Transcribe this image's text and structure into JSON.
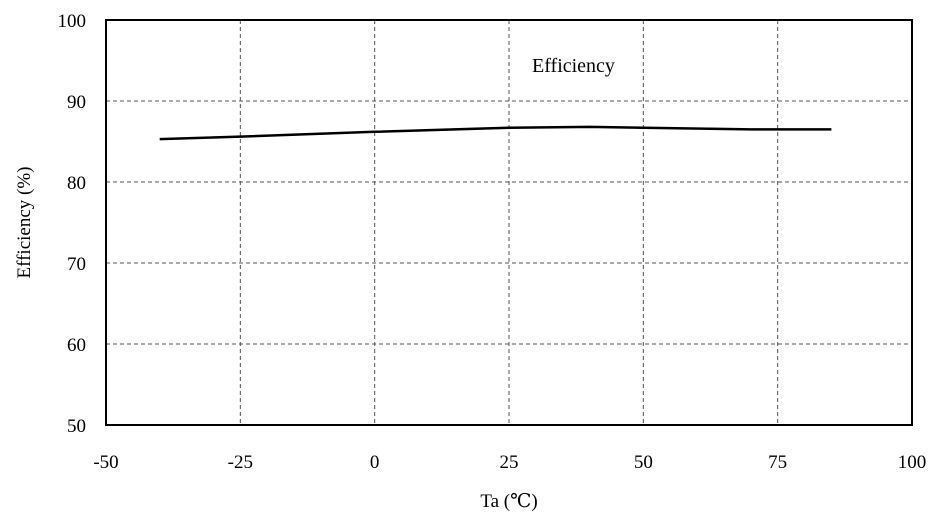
{
  "chart_data": {
    "type": "line",
    "title": "",
    "annotation": "Efficiency",
    "xlabel": "Ta (℃)",
    "ylabel": "Efficiency (%)",
    "xlim": [
      -50,
      100
    ],
    "ylim": [
      50,
      100
    ],
    "x_ticks": [
      -50,
      -25,
      0,
      25,
      50,
      75,
      100
    ],
    "y_ticks": [
      50,
      60,
      70,
      80,
      90,
      100
    ],
    "grid": true,
    "series": [
      {
        "x": [
          -40,
          -25,
          0,
          25,
          40,
          50,
          70,
          85
        ],
        "y": [
          85.3,
          85.6,
          86.2,
          86.7,
          86.8,
          86.7,
          86.5,
          86.5
        ]
      }
    ],
    "colors": {
      "line": "#000000",
      "grid": "#555555",
      "frame": "#000000"
    }
  }
}
